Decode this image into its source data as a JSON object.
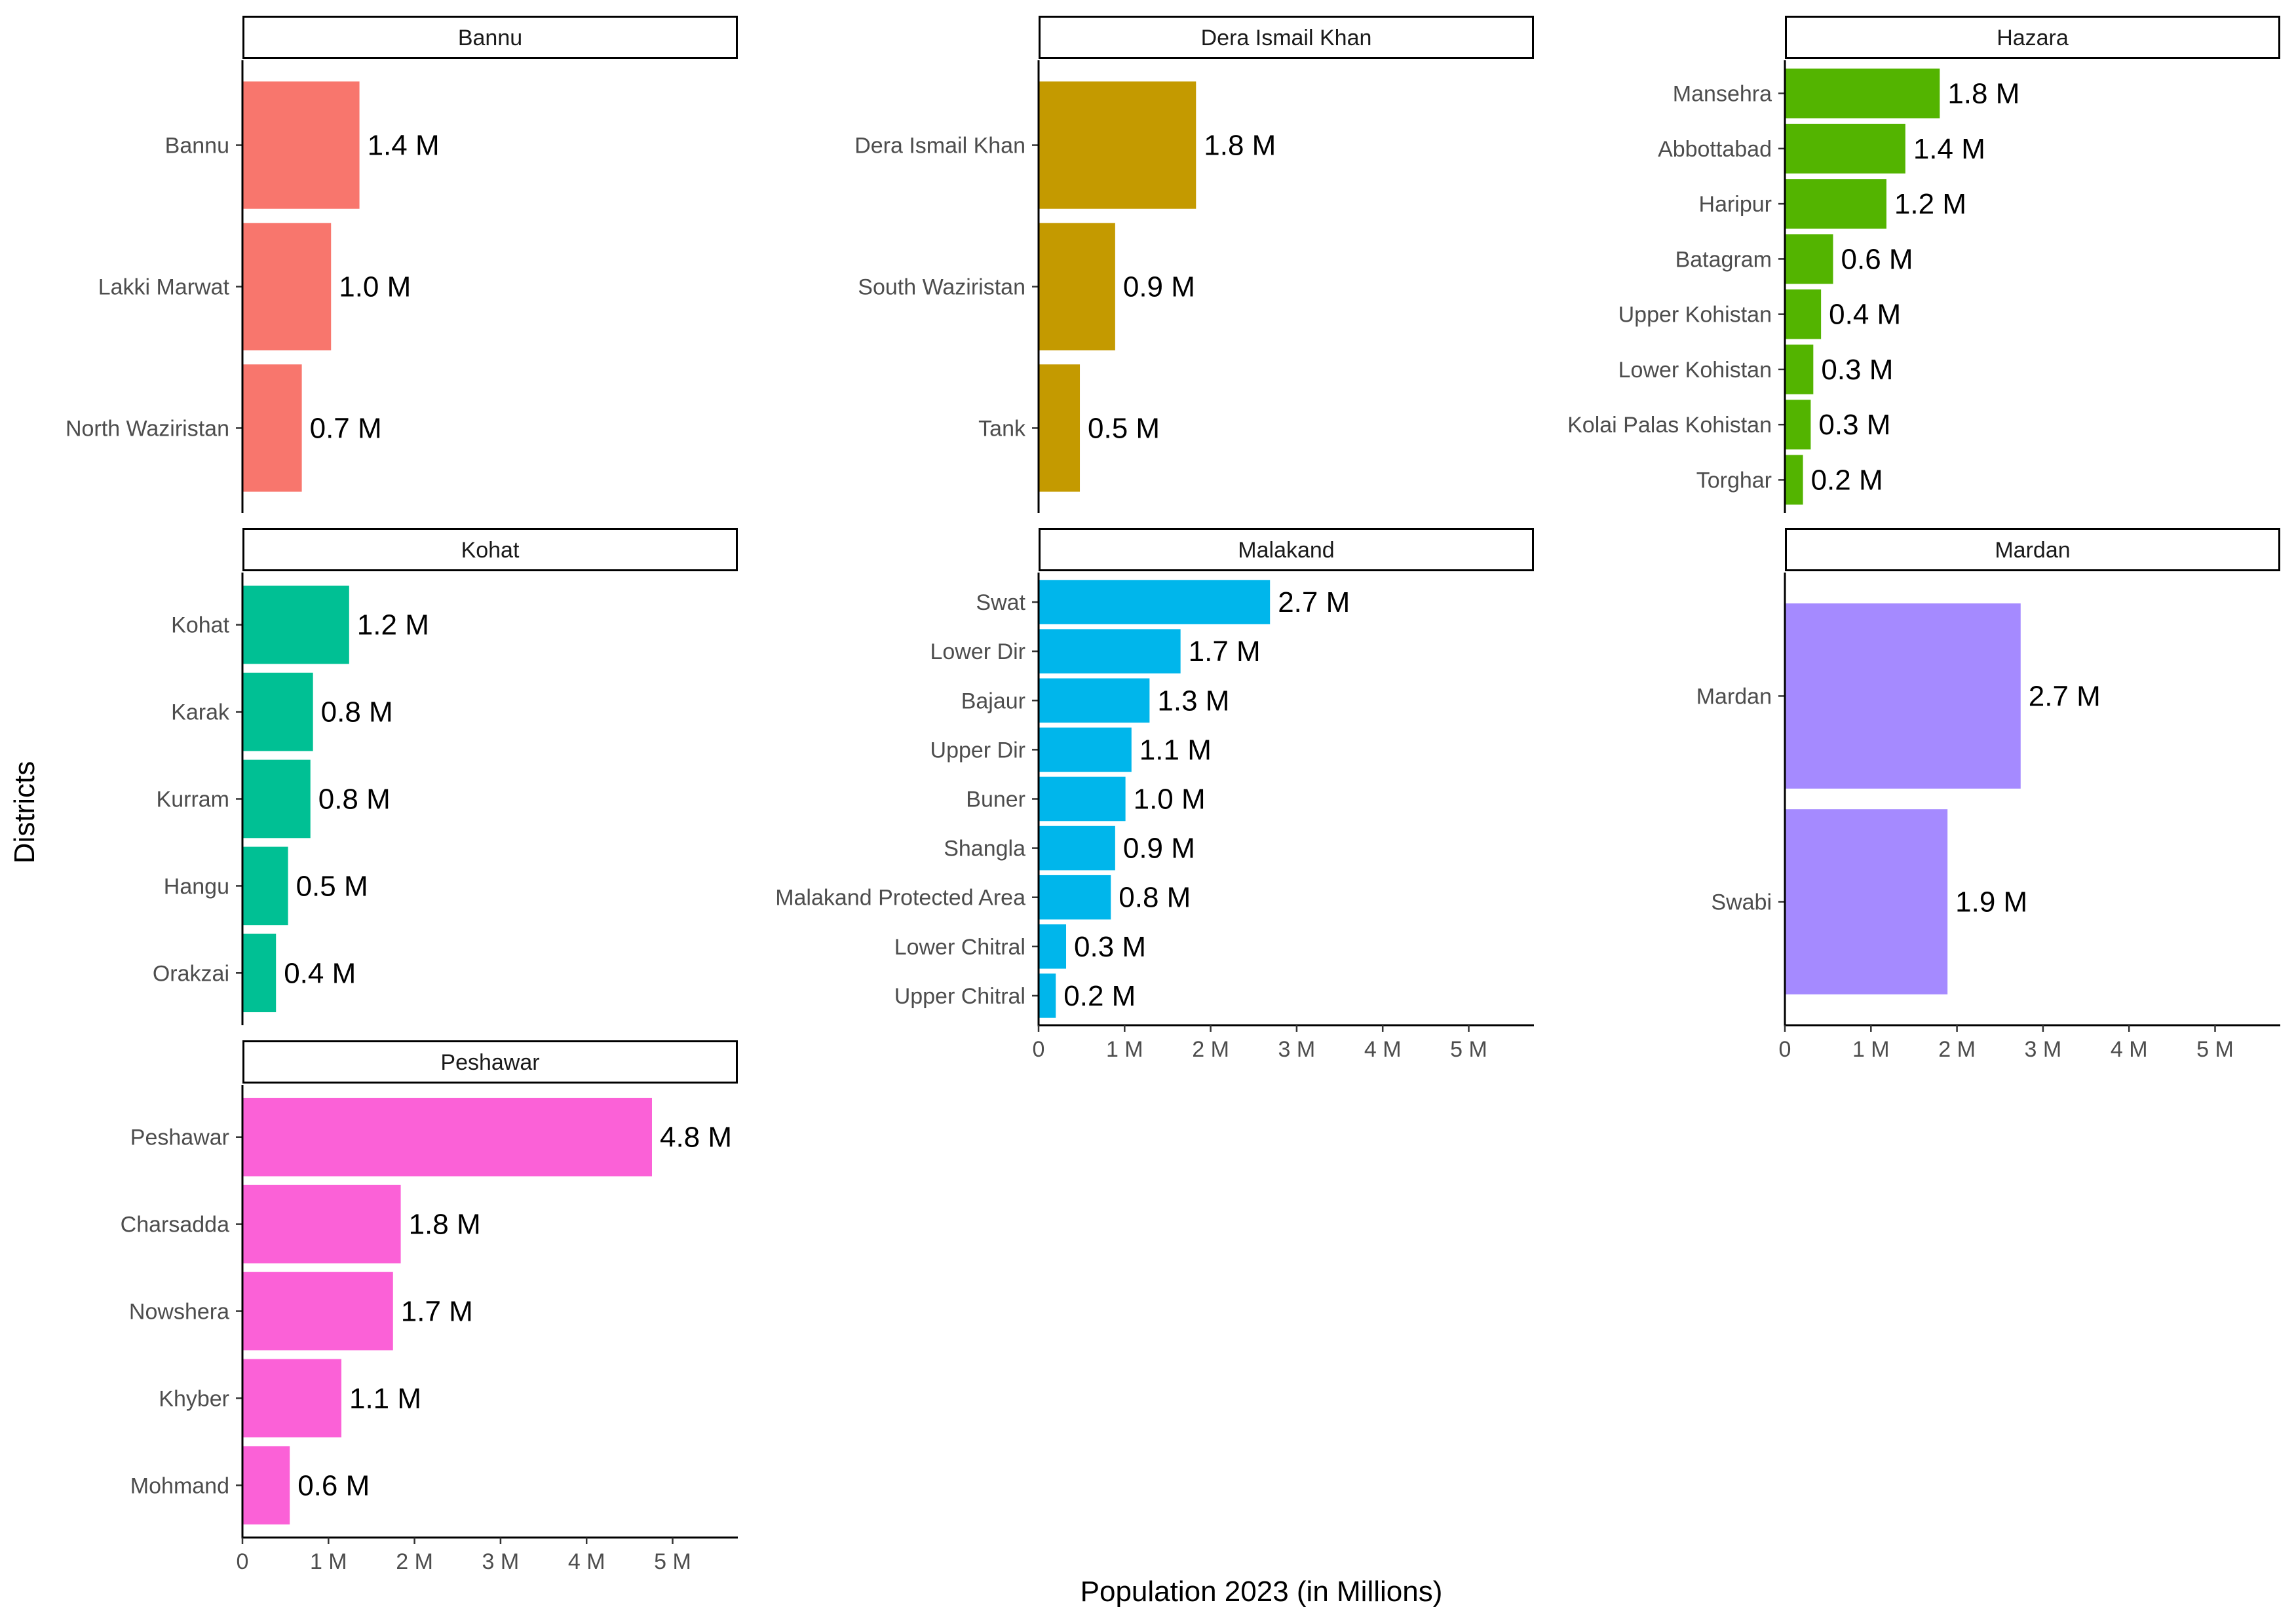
{
  "chart_data": {
    "type": "bar",
    "orientation": "horizontal",
    "xlabel": "Population 2023 (in Millions)",
    "ylabel": "Districts",
    "xlim": [
      0,
      5.8
    ],
    "xticks": [
      0,
      1,
      2,
      3,
      4,
      5
    ],
    "xtick_labels": [
      "0",
      "1 M",
      "2 M",
      "3 M",
      "4 M",
      "5 M"
    ],
    "grid": false,
    "legend": "none",
    "facets": [
      {
        "name": "Bannu",
        "color": "#F8766D",
        "categories": [
          "Bannu",
          "Lakki Marwat",
          "North Waziristan"
        ],
        "values": [
          1.36,
          1.03,
          0.69
        ],
        "labels": [
          "1.4 M",
          "1.0 M",
          "0.7 M"
        ]
      },
      {
        "name": "Dera Ismail Khan",
        "color": "#C49A00",
        "categories": [
          "Dera Ismail Khan",
          "South Waziristan",
          "Tank"
        ],
        "values": [
          1.83,
          0.89,
          0.48
        ],
        "labels": [
          "1.8 M",
          "0.9 M",
          "0.5 M"
        ]
      },
      {
        "name": "Hazara",
        "color": "#53B400",
        "categories": [
          "Mansehra",
          "Abbottabad",
          "Haripur",
          "Batagram",
          "Upper Kohistan",
          "Lower Kohistan",
          "Kolai Palas Kohistan",
          "Torghar"
        ],
        "values": [
          1.8,
          1.4,
          1.18,
          0.56,
          0.42,
          0.33,
          0.3,
          0.21
        ],
        "labels": [
          "1.8 M",
          "1.4 M",
          "1.2 M",
          "0.6 M",
          "0.4 M",
          "0.3 M",
          "0.3 M",
          "0.2 M"
        ]
      },
      {
        "name": "Kohat",
        "color": "#00C094",
        "categories": [
          "Kohat",
          "Karak",
          "Kurram",
          "Hangu",
          "Orakzai"
        ],
        "values": [
          1.24,
          0.82,
          0.79,
          0.53,
          0.39
        ],
        "labels": [
          "1.2 M",
          "0.8 M",
          "0.8 M",
          "0.5 M",
          "0.4 M"
        ]
      },
      {
        "name": "Malakand",
        "color": "#00B6EB",
        "categories": [
          "Swat",
          "Lower Dir",
          "Bajaur",
          "Upper Dir",
          "Buner",
          "Shangla",
          "Malakand Protected Area",
          "Lower Chitral",
          "Upper Chitral"
        ],
        "values": [
          2.69,
          1.65,
          1.29,
          1.08,
          1.01,
          0.89,
          0.84,
          0.32,
          0.2
        ],
        "labels": [
          "2.7 M",
          "1.7 M",
          "1.3 M",
          "1.1 M",
          "1.0 M",
          "0.9 M",
          "0.8 M",
          "0.3 M",
          "0.2 M"
        ]
      },
      {
        "name": "Mardan",
        "color": "#A58AFF",
        "categories": [
          "Mardan",
          "Swabi"
        ],
        "values": [
          2.74,
          1.89
        ],
        "labels": [
          "2.7 M",
          "1.9 M"
        ]
      },
      {
        "name": "Peshawar",
        "color": "#FB61D7",
        "categories": [
          "Peshawar",
          "Charsadda",
          "Nowshera",
          "Khyber",
          "Mohmand"
        ],
        "values": [
          4.76,
          1.84,
          1.75,
          1.15,
          0.55
        ],
        "labels": [
          "4.8 M",
          "1.8 M",
          "1.7 M",
          "1.1 M",
          "0.6 M"
        ]
      }
    ]
  }
}
